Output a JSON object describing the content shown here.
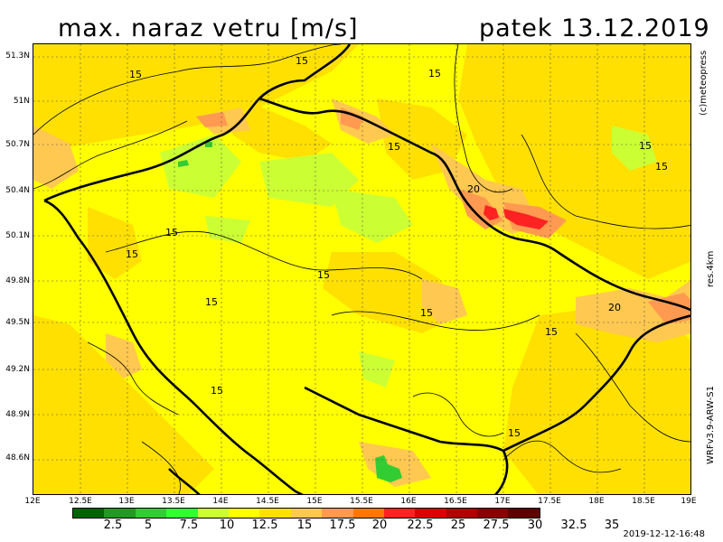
{
  "title": {
    "left": "max. naraz vetru [m/s]",
    "right": "patek 13.12.2019"
  },
  "credit": "(c)meteopress",
  "resolution": "res.4km",
  "model": "WRFv3.9-ARW-S1",
  "timestamp": "2019-12-12-16:48",
  "y_ticks": [
    "51.3N",
    "51N",
    "50.7N",
    "50.4N",
    "50.1N",
    "49.8N",
    "49.5N",
    "49.2N",
    "48.9N",
    "48.6N"
  ],
  "x_ticks": [
    "12E",
    "12.5E",
    "13E",
    "13.5E",
    "14E",
    "14.5E",
    "15E",
    "15.5E",
    "16E",
    "16.5E",
    "17E",
    "17.5E",
    "18E",
    "18.5E",
    "19E"
  ],
  "colorbar": {
    "colors": [
      "#006400",
      "#229922",
      "#33cc33",
      "#33ff33",
      "#ccff33",
      "#ffff00",
      "#ffe000",
      "#ffc850",
      "#ff9a50",
      "#ff7700",
      "#ff2222",
      "#dd0000",
      "#b30000",
      "#8c0000",
      "#600000"
    ],
    "labels": [
      "2.5",
      "5",
      "7.5",
      "10",
      "12.5",
      "15",
      "17.5",
      "20",
      "22.5",
      "25",
      "27.5",
      "30",
      "32.5",
      "35"
    ]
  },
  "contour_labels": [
    "15",
    "15",
    "15",
    "15",
    "15",
    "15",
    "15",
    "15",
    "15",
    "15",
    "15",
    "15",
    "15",
    "15",
    "20",
    "20"
  ],
  "map_colors": {
    "base": "#ffff00",
    "light_orange": "#ffe000",
    "orange": "#ffc850",
    "dark_orange": "#ff9a50",
    "red": "#ff2222",
    "green_light": "#ccff33",
    "green": "#33cc33"
  }
}
